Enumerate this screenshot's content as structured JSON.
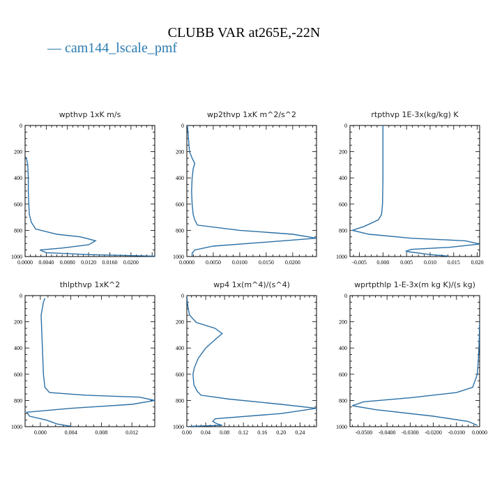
{
  "title": "CLUBB VAR at265E,-22N",
  "legend": {
    "label": "— cam144_lscale_pmf",
    "color": "#2a7ab0"
  },
  "line_color": "#2a6fa5",
  "chart_data": [
    {
      "type": "line",
      "title": "wpthvp   1xK m/s",
      "xlim": [
        0,
        0.0245
      ],
      "ylim": [
        1000,
        0
      ],
      "xticks": [
        0,
        0.004,
        0.008,
        0.012,
        0.016,
        0.02
      ],
      "xtick_labels": [
        "0.0000",
        "0.0040",
        "0.0080",
        "0.0120",
        "0.0160",
        "0.0200"
      ],
      "yticks": [
        0,
        200,
        400,
        600,
        800,
        1000
      ],
      "ytick_labels": [
        "0",
        "200",
        "400",
        "600",
        "800",
        "1000"
      ],
      "series": [
        {
          "x": [
            0.0001,
            0.0003,
            0.0005,
            0.0006,
            0.0006,
            0.0007,
            0.0008,
            0.0012,
            0.002,
            0.006,
            0.0105,
            0.0133,
            0.012,
            0.007,
            0.0028,
            0.004,
            0.012,
            0.0245
          ],
          "y": [
            240,
            260,
            300,
            400,
            500,
            600,
            680,
            740,
            790,
            830,
            850,
            880,
            910,
            935,
            950,
            970,
            985,
            997
          ]
        }
      ]
    },
    {
      "type": "line",
      "title": "wp2thvp   1xK m^2/s^2",
      "xlim": [
        0,
        0.0245
      ],
      "ylim": [
        1000,
        0
      ],
      "xticks": [
        0,
        0.005,
        0.01,
        0.015,
        0.02
      ],
      "xtick_labels": [
        "0.0000",
        "0.0050",
        "0.0100",
        "0.0150",
        "0.0200"
      ],
      "yticks": [
        0,
        200,
        400,
        600,
        800,
        1000
      ],
      "ytick_labels": [
        "0",
        "200",
        "400",
        "600",
        "800",
        "1000"
      ],
      "series": [
        {
          "x": [
            0.0001,
            0.0003,
            0.0005,
            0.001,
            0.0015,
            0.0012,
            0.001,
            0.0009,
            0.001,
            0.0012,
            0.0015,
            0.002,
            0.01,
            0.02,
            0.0245,
            0.015,
            0.005,
            0.0015,
            0.001,
            0.001
          ],
          "y": [
            0,
            100,
            200,
            250,
            290,
            330,
            400,
            500,
            600,
            680,
            720,
            760,
            800,
            830,
            860,
            890,
            920,
            950,
            975,
            997
          ]
        }
      ]
    },
    {
      "type": "line",
      "title": "rtpthvp   1E-3x(kg/kg) K",
      "xlim": [
        -0.007,
        0.0205
      ],
      "ylim": [
        1000,
        0
      ],
      "xticks": [
        -0.005,
        0,
        0.005,
        0.01,
        0.015,
        0.02
      ],
      "xtick_labels": [
        "-0.005",
        "0.000",
        "0.005",
        "0.010",
        "0.015",
        "0.020"
      ],
      "yticks": [
        0,
        200,
        400,
        600,
        800,
        1000
      ],
      "ytick_labels": [
        "0",
        "200",
        "400",
        "600",
        "800",
        "1000"
      ],
      "series": [
        {
          "x": [
            0,
            0,
            0,
            -0.0001,
            -0.0003,
            -0.001,
            -0.004,
            -0.0065,
            -0.003,
            0.006,
            0.0175,
            0.0205,
            0.014,
            0.006,
            0.0048,
            0.01,
            0.014
          ],
          "y": [
            0,
            200,
            400,
            600,
            680,
            720,
            770,
            800,
            830,
            860,
            880,
            905,
            930,
            945,
            960,
            985,
            997
          ]
        }
      ]
    },
    {
      "type": "line",
      "title": "thlpthvp   1xK^2",
      "xlim": [
        -0.002,
        0.015
      ],
      "ylim": [
        1000,
        0
      ],
      "xticks": [
        0,
        0.004,
        0.008,
        0.012
      ],
      "xtick_labels": [
        "0.000",
        "0.004",
        "0.008",
        "0.012"
      ],
      "yticks": [
        0,
        200,
        400,
        600,
        800,
        1000
      ],
      "ytick_labels": [
        "0",
        "200",
        "400",
        "600",
        "800",
        "1000"
      ],
      "series": [
        {
          "x": [
            0.0006,
            0.0004,
            0.0001,
            0.0002,
            0.0003,
            0.0004,
            0.0006,
            0.0012,
            0.006,
            0.013,
            0.015,
            0.012,
            0.004,
            -0.0018,
            -0.0014,
            0.0008,
            0.0022,
            0.004
          ],
          "y": [
            20,
            50,
            150,
            300,
            450,
            600,
            700,
            740,
            760,
            775,
            800,
            830,
            860,
            890,
            920,
            950,
            980,
            997
          ]
        }
      ]
    },
    {
      "type": "line",
      "title": "wp4   1x(m^4)/(s^4)",
      "xlim": [
        0,
        0.275
      ],
      "ylim": [
        1000,
        0
      ],
      "xticks": [
        0,
        0.04,
        0.08,
        0.12,
        0.16,
        0.2,
        0.24
      ],
      "xtick_labels": [
        "0.00",
        "0.04",
        "0.08",
        "0.12",
        "0.16",
        "0.20",
        "0.24"
      ],
      "yticks": [
        0,
        200,
        400,
        600,
        800,
        1000
      ],
      "ytick_labels": [
        "0",
        "200",
        "400",
        "600",
        "800",
        "1000"
      ],
      "series": [
        {
          "x": [
            0.0,
            0.001,
            0.003,
            0.006,
            0.02,
            0.06,
            0.075,
            0.062,
            0.04,
            0.024,
            0.016,
            0.013,
            0.015,
            0.022,
            0.03,
            0.09,
            0.2,
            0.275,
            0.2,
            0.06,
            0.055,
            0.065,
            0.075,
            0.03,
            0.005
          ],
          "y": [
            0,
            50,
            100,
            150,
            205,
            250,
            290,
            330,
            400,
            480,
            550,
            600,
            680,
            730,
            760,
            790,
            830,
            860,
            900,
            940,
            960,
            980,
            990,
            995,
            998
          ]
        }
      ]
    },
    {
      "type": "line",
      "title": "wprtpthlp   1-E-3x(m kg K)/(s kg)",
      "xlim": [
        -0.056,
        0.0
      ],
      "ylim": [
        1000,
        0
      ],
      "xticks": [
        -0.05,
        -0.04,
        -0.03,
        -0.02,
        -0.01,
        0.0
      ],
      "xtick_labels": [
        "-0.0500",
        "-0.0400",
        "-0.0300",
        "-0.0200",
        "-0.0100",
        "0.0000"
      ],
      "yticks": [
        0,
        200,
        400,
        600,
        800,
        1000
      ],
      "ytick_labels": [
        "0",
        "200",
        "400",
        "600",
        "800",
        "1000"
      ],
      "series": [
        {
          "x": [
            0.0,
            -0.0003,
            -0.0006,
            -0.001,
            -0.002,
            -0.003,
            -0.01,
            -0.03,
            -0.05,
            -0.055,
            -0.045,
            -0.02,
            -0.005,
            -0.001
          ],
          "y": [
            200,
            400,
            500,
            600,
            650,
            700,
            740,
            780,
            810,
            840,
            870,
            920,
            960,
            990
          ]
        }
      ]
    }
  ]
}
